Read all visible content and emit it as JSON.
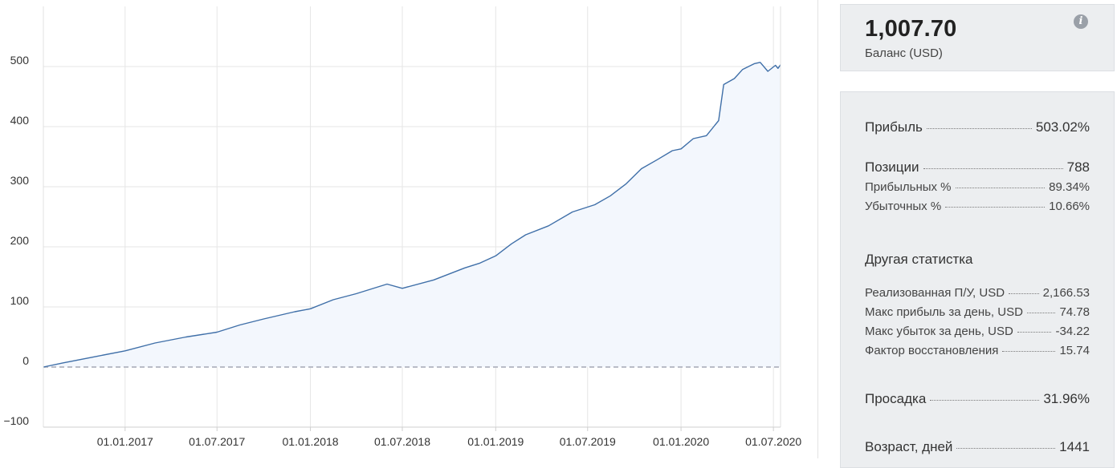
{
  "chart_data": {
    "type": "area",
    "x_ticks": [
      "01.01.2017",
      "01.07.2017",
      "01.01.2018",
      "01.07.2018",
      "01.01.2019",
      "01.07.2019",
      "01.01.2020",
      "01.07.2020"
    ],
    "y_ticks": [
      -100,
      0,
      100,
      200,
      300,
      400,
      500
    ],
    "xlim": [
      "2016-07-24",
      "2020-07-15"
    ],
    "ylim": [
      -100,
      600
    ],
    "baseline": 0,
    "grid": true,
    "line_color": "#3f6fa8",
    "fill_color": "#f3f7fd",
    "baseline_color": "#b9bcc7",
    "series": [
      {
        "x": [
          "2016-07-24",
          "2016-09-01",
          "2016-11-01",
          "2017-01-01",
          "2017-03-01",
          "2017-05-01",
          "2017-07-01",
          "2017-08-15",
          "2017-10-01",
          "2017-12-01",
          "2018-01-01",
          "2018-02-15",
          "2018-04-01",
          "2018-06-01",
          "2018-07-01",
          "2018-09-01",
          "2018-11-01",
          "2018-12-01",
          "2019-01-01",
          "2019-02-01",
          "2019-03-01",
          "2019-04-15",
          "2019-06-01",
          "2019-07-15",
          "2019-08-15",
          "2019-09-15",
          "2019-10-15",
          "2019-11-15",
          "2019-12-15",
          "2020-01-01",
          "2020-01-25",
          "2020-02-20",
          "2020-03-15",
          "2020-03-25",
          "2020-04-15",
          "2020-05-01",
          "2020-05-25",
          "2020-06-05",
          "2020-06-20",
          "2020-07-05",
          "2020-07-10",
          "2020-07-15"
        ],
        "y": [
          0,
          7,
          17,
          27,
          40,
          50,
          58,
          70,
          80,
          92,
          97,
          112,
          122,
          138,
          131,
          145,
          165,
          173,
          185,
          205,
          220,
          235,
          258,
          270,
          285,
          305,
          330,
          345,
          360,
          363,
          380,
          385,
          410,
          470,
          480,
          495,
          505,
          507,
          492,
          502,
          497,
          503
        ]
      }
    ]
  },
  "balance": {
    "value": "1,007.70",
    "label": "Баланс (USD)",
    "info_icon": "info-icon"
  },
  "stats": {
    "profit": {
      "label": "Прибыль",
      "value": "503.02%"
    },
    "positions": {
      "label": "Позиции",
      "value": "788"
    },
    "profitable": {
      "label": "Прибыльных %",
      "value": "89.34%"
    },
    "losing": {
      "label": "Убыточных %",
      "value": "10.66%"
    },
    "other_title": "Другая статистка",
    "realized": {
      "label": "Реализованная П/У, USD",
      "value": "2,166.53"
    },
    "max_profit_day": {
      "label": "Макс прибыль за день, USD",
      "value": "74.78"
    },
    "max_loss_day": {
      "label": "Макс убыток за день, USD",
      "value": "-34.22"
    },
    "recovery": {
      "label": "Фактор восстановления",
      "value": "15.74"
    },
    "drawdown": {
      "label": "Просадка",
      "value": "31.96%"
    },
    "age": {
      "label": "Возраст, дней",
      "value": "1441"
    }
  }
}
